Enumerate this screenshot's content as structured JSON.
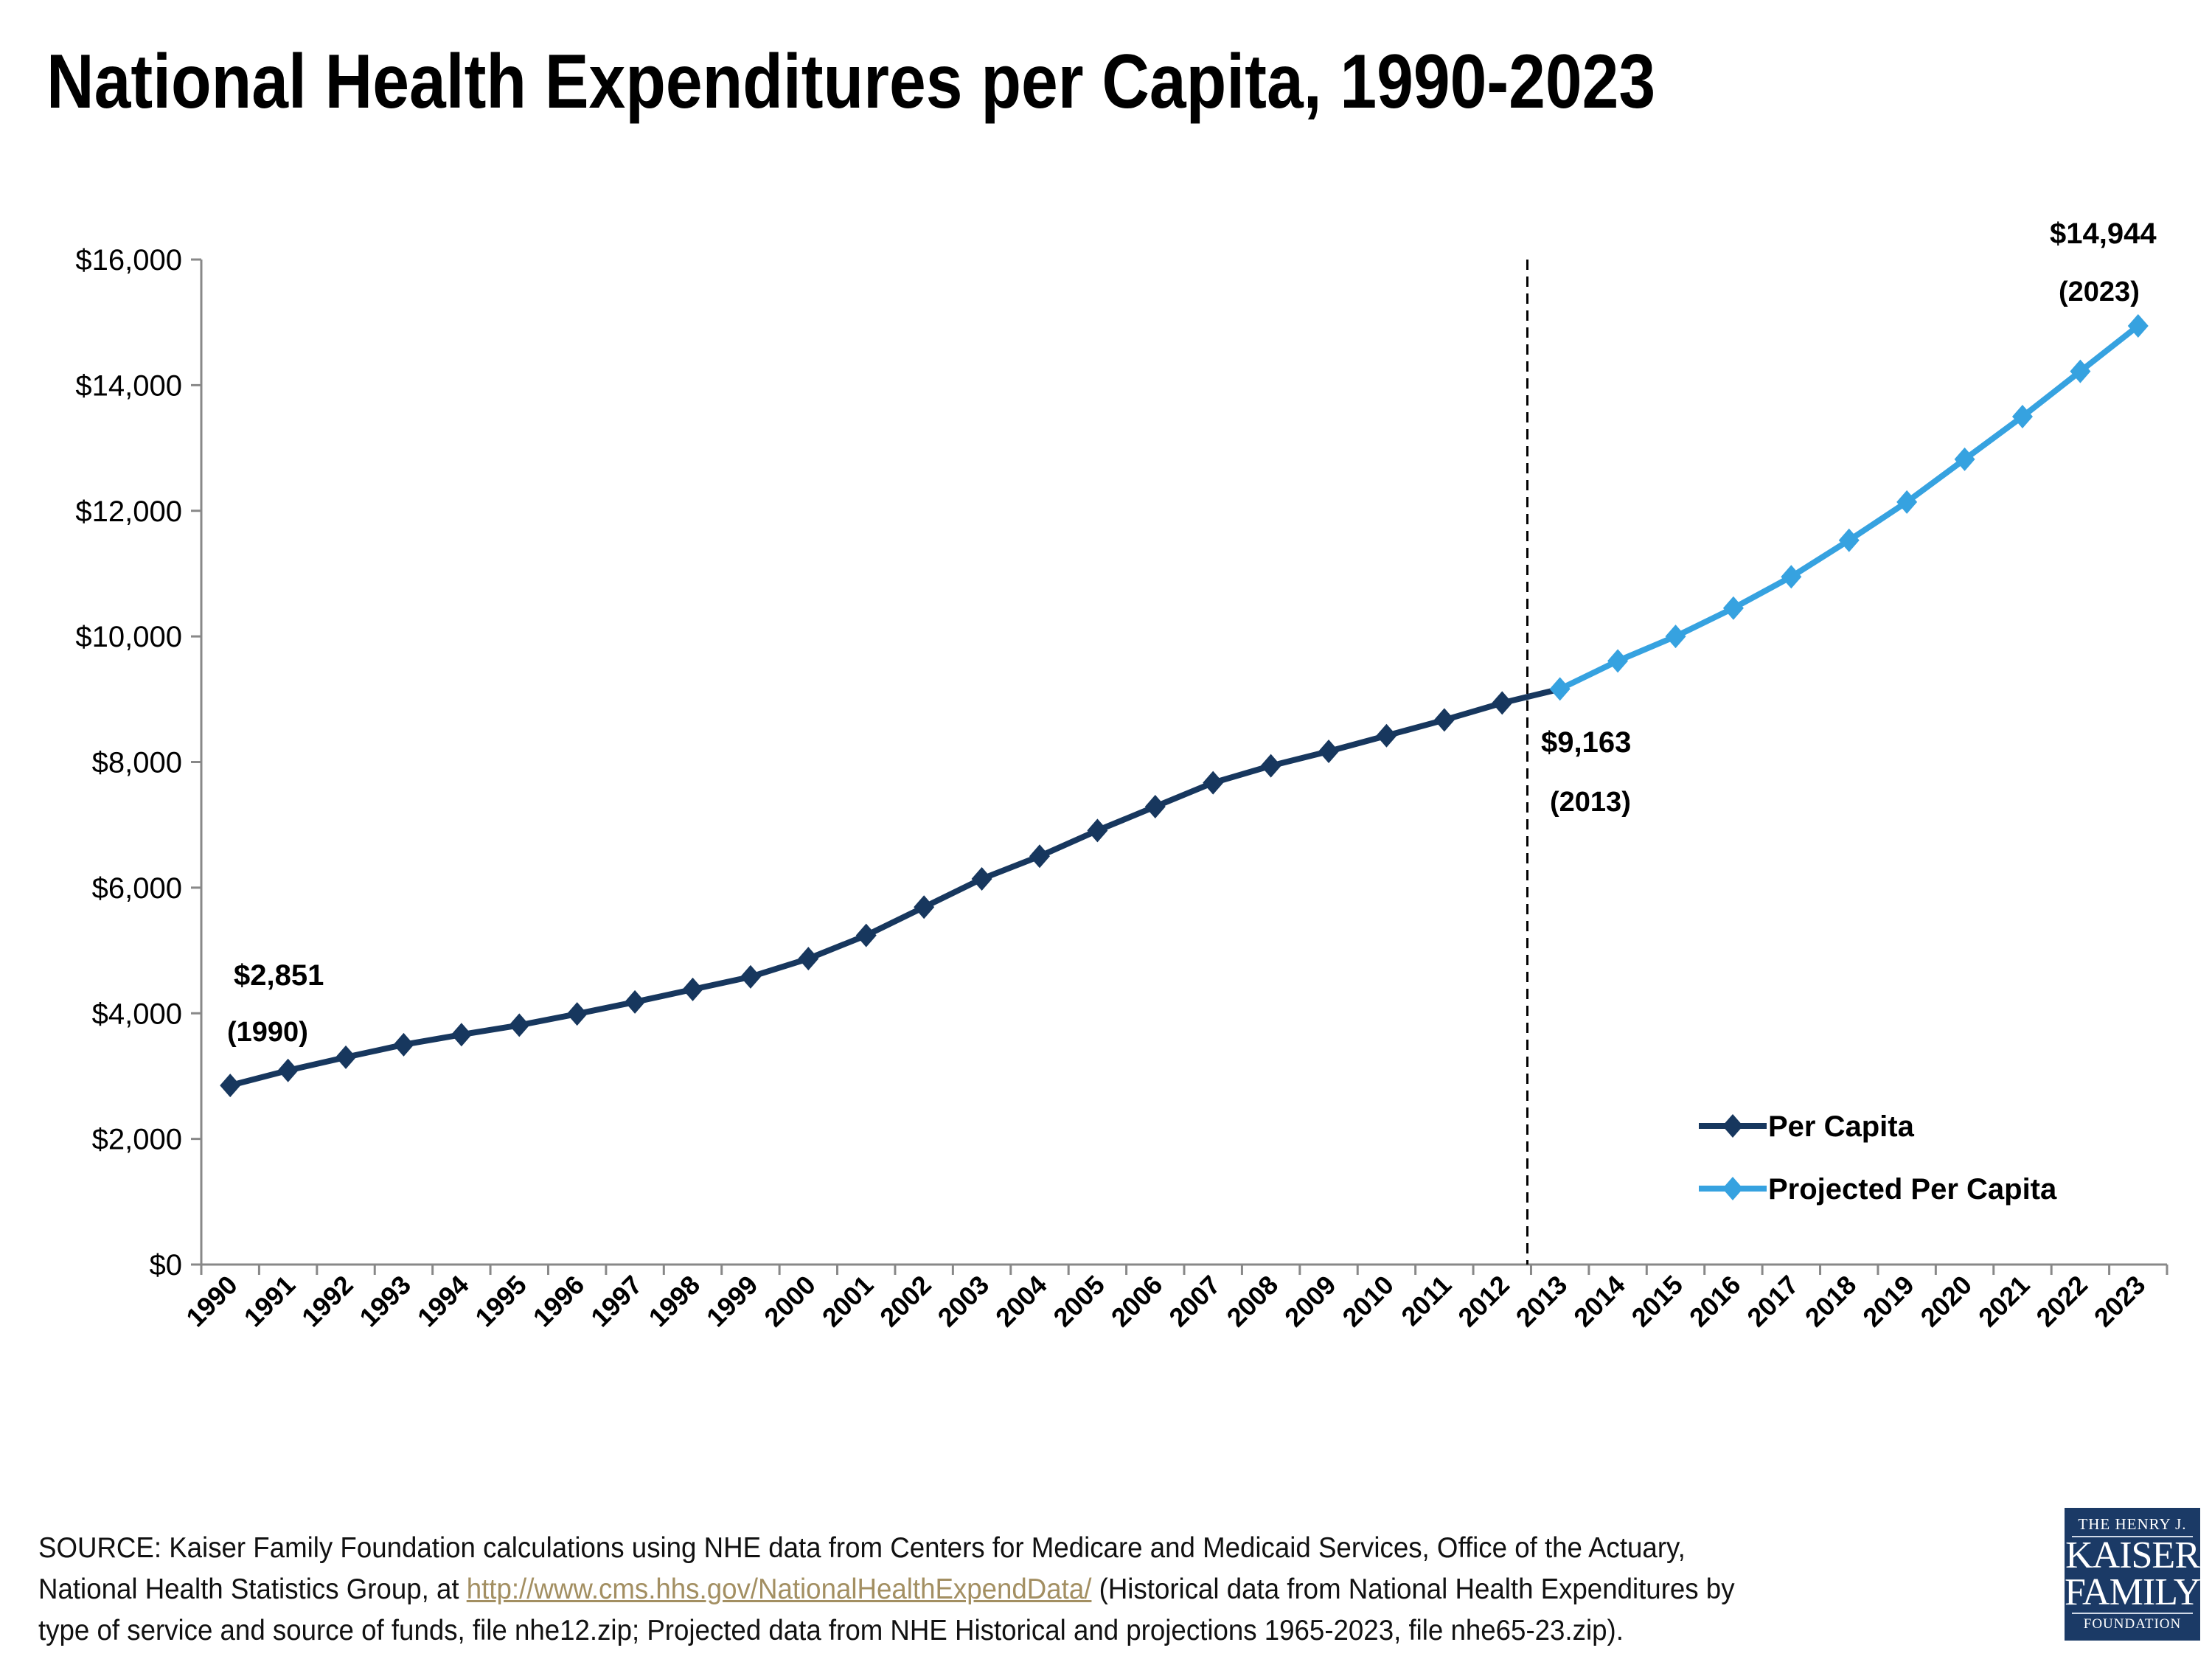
{
  "title": "National Health Expenditures per Capita, 1990-2023",
  "chart_data": {
    "type": "line",
    "title": "National Health Expenditures per Capita, 1990-2023",
    "x": [
      1990,
      1991,
      1992,
      1993,
      1994,
      1995,
      1996,
      1997,
      1998,
      1999,
      2000,
      2001,
      2002,
      2003,
      2004,
      2005,
      2006,
      2007,
      2008,
      2009,
      2010,
      2011,
      2012,
      2013,
      2014,
      2015,
      2016,
      2017,
      2018,
      2019,
      2020,
      2021,
      2022,
      2023
    ],
    "series": [
      {
        "name": "Per Capita",
        "color": "#17375e",
        "x": [
          1990,
          1991,
          1992,
          1993,
          1994,
          1995,
          1996,
          1997,
          1998,
          1999,
          2000,
          2001,
          2002,
          2003,
          2004,
          2005,
          2006,
          2007,
          2008,
          2009,
          2010,
          2011,
          2012,
          2013
        ],
        "values": [
          2851,
          3090,
          3300,
          3500,
          3660,
          3810,
          3990,
          4180,
          4380,
          4580,
          4870,
          5240,
          5690,
          6140,
          6500,
          6910,
          7290,
          7670,
          7940,
          8170,
          8420,
          8670,
          8940,
          9163
        ]
      },
      {
        "name": "Projected Per Capita",
        "color": "#36a2e0",
        "x": [
          2013,
          2014,
          2015,
          2016,
          2017,
          2018,
          2019,
          2020,
          2021,
          2022,
          2023
        ],
        "values": [
          9163,
          9610,
          10000,
          10450,
          10950,
          11530,
          12140,
          12820,
          13500,
          14220,
          14944
        ]
      }
    ],
    "ylim": [
      0,
      16000
    ],
    "yticks": [
      0,
      2000,
      4000,
      6000,
      8000,
      10000,
      12000,
      14000,
      16000
    ],
    "ytick_labels": [
      "$0",
      "$2,000",
      "$4,000",
      "$6,000",
      "$8,000",
      "$10,000",
      "$12,000",
      "$14,000",
      "$16,000"
    ],
    "xtick_labels": [
      "1990",
      "1991",
      "1992",
      "1993",
      "1994",
      "1995",
      "1996",
      "1997",
      "1998",
      "1999",
      "2000",
      "2001",
      "2002",
      "2003",
      "2004",
      "2005",
      "2006",
      "2007",
      "2008",
      "2009",
      "2010",
      "2011",
      "2012",
      "2013",
      "2014",
      "2015",
      "2016",
      "2017",
      "2018",
      "2019",
      "2020",
      "2021",
      "2022",
      "2023"
    ],
    "divider_between": [
      2012,
      2013
    ],
    "annotations": [
      {
        "value": "$2,851",
        "year": "(1990)"
      },
      {
        "value": "$9,163",
        "year": "(2013)"
      },
      {
        "value": "$14,944",
        "year": "(2023)"
      }
    ],
    "legend": {
      "placement": "bottom-right",
      "entries": [
        "Per Capita",
        "Projected Per Capita"
      ]
    },
    "grid": false
  },
  "footnote": {
    "line1": "SOURCE: Kaiser Family Foundation calculations using NHE data from Centers for Medicare and Medicaid Services, Office of the Actuary,",
    "line2_prefix": "National Health Statistics Group, at ",
    "link": "http://www.cms.hhs.gov/NationalHealthExpendData/",
    "line2_suffix": " (Historical data from National Health Expenditures by",
    "line3": "type of service and source of funds, file nhe12.zip; Projected data from NHE Historical and projections 1965-2023, file nhe65-23.zip)."
  },
  "logo": {
    "line1": "THE HENRY J.",
    "line2": "KAISER",
    "line3": "FAMILY",
    "line4": "FOUNDATION"
  }
}
